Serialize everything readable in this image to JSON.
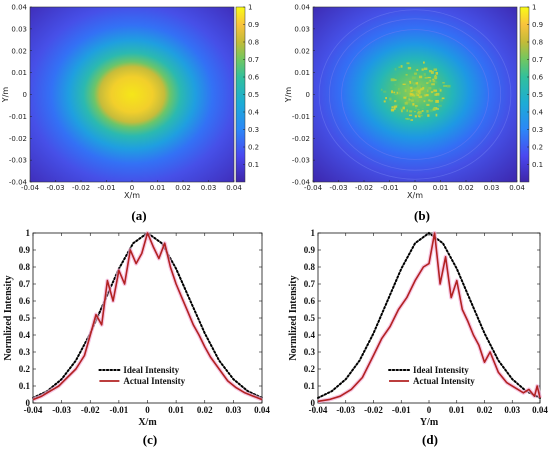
{
  "chart_data": [
    {
      "type": "heatmap",
      "panel_label": "(a)",
      "xlabel": "X/m",
      "ylabel": "Y/m",
      "xlim": [
        -0.04,
        0.04
      ],
      "ylim": [
        -0.04,
        0.04
      ],
      "x_ticks": [
        "-0.04",
        "-0.03",
        "-0.02",
        "-0.01",
        "0",
        "0.01",
        "0.02",
        "0.03",
        "0.04"
      ],
      "y_ticks": [
        "0.04",
        "0.03",
        "0.02",
        "0.01",
        "0",
        "-0.01",
        "-0.02",
        "-0.03",
        "-0.04"
      ],
      "colorbar_ticks": [
        "1",
        "0.9",
        "0.8",
        "0.7",
        "0.6",
        "0.5",
        "0.4",
        "0.3",
        "0.2",
        "0.1"
      ],
      "colorbar_range": [
        0,
        1
      ],
      "pattern": "smooth gaussian spot centered at origin",
      "peak": 1.0,
      "spot_sigma": 0.018
    },
    {
      "type": "heatmap",
      "panel_label": "(b)",
      "xlabel": "X/m",
      "ylabel": "Y/m",
      "xlim": [
        -0.04,
        0.04
      ],
      "ylim": [
        -0.04,
        0.04
      ],
      "x_ticks": [
        "-0.04",
        "-0.03",
        "-0.02",
        "-0.01",
        "0",
        "0.01",
        "0.02",
        "0.03",
        "0.04"
      ],
      "y_ticks": [
        "0.04",
        "0.03",
        "0.02",
        "0.01",
        "0",
        "-0.01",
        "-0.02",
        "-0.03",
        "-0.04"
      ],
      "colorbar_ticks": [
        "1",
        "0.9",
        "0.8",
        "0.7",
        "0.6",
        "0.5",
        "0.4",
        "0.3",
        "0.2",
        "0.1"
      ],
      "colorbar_range": [
        0,
        1
      ],
      "pattern": "speckled gaussian spot with circular rings",
      "peak": 0.8,
      "spot_sigma": 0.02
    },
    {
      "type": "line",
      "panel_label": "(c)",
      "xlabel": "X/m",
      "ylabel": "Normlized Intensity",
      "xlim": [
        -0.04,
        0.04
      ],
      "ylim": [
        0,
        1
      ],
      "x_ticks": [
        "-0.04",
        "-0.03",
        "-0.02",
        "-0.01",
        "0",
        "0.01",
        "0.02",
        "0.03",
        "0.04"
      ],
      "y_ticks": [
        "0",
        "0.1",
        "0.2",
        "0.3",
        "0.4",
        "0.5",
        "0.6",
        "0.7",
        "0.8",
        "0.9",
        "1"
      ],
      "legend_position": "bottom-center",
      "series": [
        {
          "name": "Ideal Intensity",
          "style": "dotted",
          "color": "#000000",
          "x": [
            -0.04,
            -0.035,
            -0.03,
            -0.025,
            -0.02,
            -0.015,
            -0.01,
            -0.005,
            0,
            0.005,
            0.01,
            0.015,
            0.02,
            0.025,
            0.03,
            0.035,
            0.04
          ],
          "y": [
            0.03,
            0.07,
            0.14,
            0.25,
            0.41,
            0.6,
            0.79,
            0.94,
            1.0,
            0.94,
            0.79,
            0.6,
            0.41,
            0.25,
            0.14,
            0.07,
            0.03
          ]
        },
        {
          "name": "Actual Intensity",
          "style": "solid",
          "color": "#b22222",
          "x": [
            -0.04,
            -0.037,
            -0.034,
            -0.031,
            -0.028,
            -0.025,
            -0.022,
            -0.02,
            -0.018,
            -0.016,
            -0.014,
            -0.012,
            -0.01,
            -0.008,
            -0.006,
            -0.004,
            -0.002,
            0,
            0.002,
            0.004,
            0.006,
            0.008,
            0.01,
            0.012,
            0.014,
            0.016,
            0.018,
            0.02,
            0.022,
            0.025,
            0.028,
            0.031,
            0.034,
            0.037,
            0.04
          ],
          "y": [
            0.02,
            0.04,
            0.07,
            0.1,
            0.15,
            0.2,
            0.28,
            0.4,
            0.52,
            0.46,
            0.72,
            0.6,
            0.78,
            0.7,
            0.9,
            0.82,
            0.88,
            1.0,
            0.92,
            0.85,
            0.94,
            0.8,
            0.7,
            0.62,
            0.54,
            0.46,
            0.4,
            0.33,
            0.27,
            0.2,
            0.13,
            0.09,
            0.06,
            0.04,
            0.02
          ]
        }
      ]
    },
    {
      "type": "line",
      "panel_label": "(d)",
      "xlabel": "Y/m",
      "ylabel": "Normlized Intensity",
      "xlim": [
        -0.04,
        0.04
      ],
      "ylim": [
        0,
        1
      ],
      "x_ticks": [
        "-0.04",
        "-0.03",
        "-0.02",
        "-0.01",
        "0",
        "0.01",
        "0.02",
        "0.03",
        "0.04"
      ],
      "y_ticks": [
        "0",
        "0.1",
        "0.2",
        "0.3",
        "0.4",
        "0.5",
        "0.6",
        "0.7",
        "0.8",
        "0.9",
        "1"
      ],
      "legend_position": "bottom-center",
      "series": [
        {
          "name": "Ideal Intensity",
          "style": "dotted",
          "color": "#000000",
          "x": [
            -0.04,
            -0.035,
            -0.03,
            -0.025,
            -0.02,
            -0.015,
            -0.01,
            -0.005,
            0,
            0.005,
            0.01,
            0.015,
            0.02,
            0.025,
            0.03,
            0.035,
            0.04
          ],
          "y": [
            0.03,
            0.07,
            0.14,
            0.25,
            0.41,
            0.6,
            0.79,
            0.94,
            1.0,
            0.94,
            0.79,
            0.6,
            0.41,
            0.25,
            0.14,
            0.07,
            0.03
          ]
        },
        {
          "name": "Actual Intensity",
          "style": "solid",
          "color": "#b22222",
          "x": [
            -0.04,
            -0.036,
            -0.032,
            -0.028,
            -0.024,
            -0.02,
            -0.017,
            -0.014,
            -0.011,
            -0.008,
            -0.005,
            -0.002,
            0,
            0.002,
            0.004,
            0.006,
            0.008,
            0.01,
            0.012,
            0.014,
            0.016,
            0.018,
            0.02,
            0.022,
            0.025,
            0.028,
            0.031,
            0.034,
            0.036,
            0.038,
            0.039,
            0.04
          ],
          "y": [
            0.01,
            0.02,
            0.04,
            0.08,
            0.15,
            0.28,
            0.38,
            0.45,
            0.55,
            0.62,
            0.72,
            0.8,
            0.82,
            1.0,
            0.7,
            0.86,
            0.62,
            0.72,
            0.55,
            0.48,
            0.4,
            0.34,
            0.24,
            0.3,
            0.18,
            0.12,
            0.09,
            0.06,
            0.08,
            0.04,
            0.1,
            0.03
          ]
        }
      ]
    }
  ]
}
